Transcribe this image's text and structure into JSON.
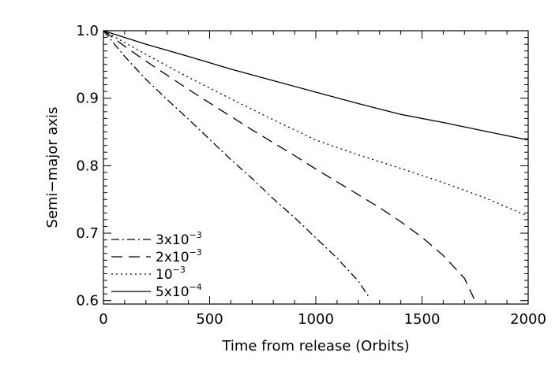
{
  "chart_data": {
    "type": "line",
    "title": "",
    "xlabel": "Time from release (Orbits)",
    "ylabel": "Semi−major axis",
    "xlim": [
      0,
      2000
    ],
    "ylim": [
      0.595,
      1.0
    ],
    "x_ticks": [
      "0",
      "500",
      "1000",
      "1500",
      "2000"
    ],
    "y_ticks": [
      "0.6",
      "0.7",
      "0.8",
      "0.9",
      "1.0"
    ],
    "legend_position": "bottom-left",
    "series": [
      {
        "name": "3x10-3",
        "name_base": "3x10",
        "name_exp": "−3",
        "dash": "dash-dot",
        "x": [
          0,
          100,
          200,
          300,
          400,
          500,
          600,
          700,
          800,
          900,
          1000,
          1100,
          1200,
          1255
        ],
        "y": [
          1.0,
          0.962,
          0.928,
          0.898,
          0.869,
          0.839,
          0.809,
          0.781,
          0.751,
          0.723,
          0.693,
          0.663,
          0.629,
          0.603
        ]
      },
      {
        "name": "2x10-3",
        "name_base": "2x10",
        "name_exp": "−3",
        "dash": "long-dash",
        "x": [
          0,
          100,
          200,
          300,
          400,
          500,
          600,
          700,
          800,
          900,
          1000,
          1100,
          1200,
          1300,
          1400,
          1500,
          1600,
          1700,
          1745
        ],
        "y": [
          1.0,
          0.977,
          0.955,
          0.934,
          0.913,
          0.893,
          0.873,
          0.853,
          0.834,
          0.815,
          0.795,
          0.776,
          0.757,
          0.738,
          0.717,
          0.694,
          0.667,
          0.633,
          0.603
        ]
      },
      {
        "name": "10-3",
        "name_base": "10",
        "name_exp": "−3",
        "dash": "dotted",
        "x": [
          0,
          200,
          400,
          600,
          800,
          1000,
          1200,
          1400,
          1600,
          1800,
          2000
        ],
        "y": [
          1.0,
          0.965,
          0.931,
          0.899,
          0.868,
          0.838,
          0.816,
          0.796,
          0.775,
          0.752,
          0.725
        ]
      },
      {
        "name": "5x10-4",
        "name_base": "5x10",
        "name_exp": "−4",
        "dash": "solid",
        "x": [
          0,
          200,
          400,
          600,
          800,
          1000,
          1200,
          1400,
          1600,
          1800,
          2000
        ],
        "y": [
          1.0,
          0.98,
          0.962,
          0.943,
          0.926,
          0.909,
          0.892,
          0.876,
          0.864,
          0.851,
          0.838
        ]
      }
    ]
  }
}
